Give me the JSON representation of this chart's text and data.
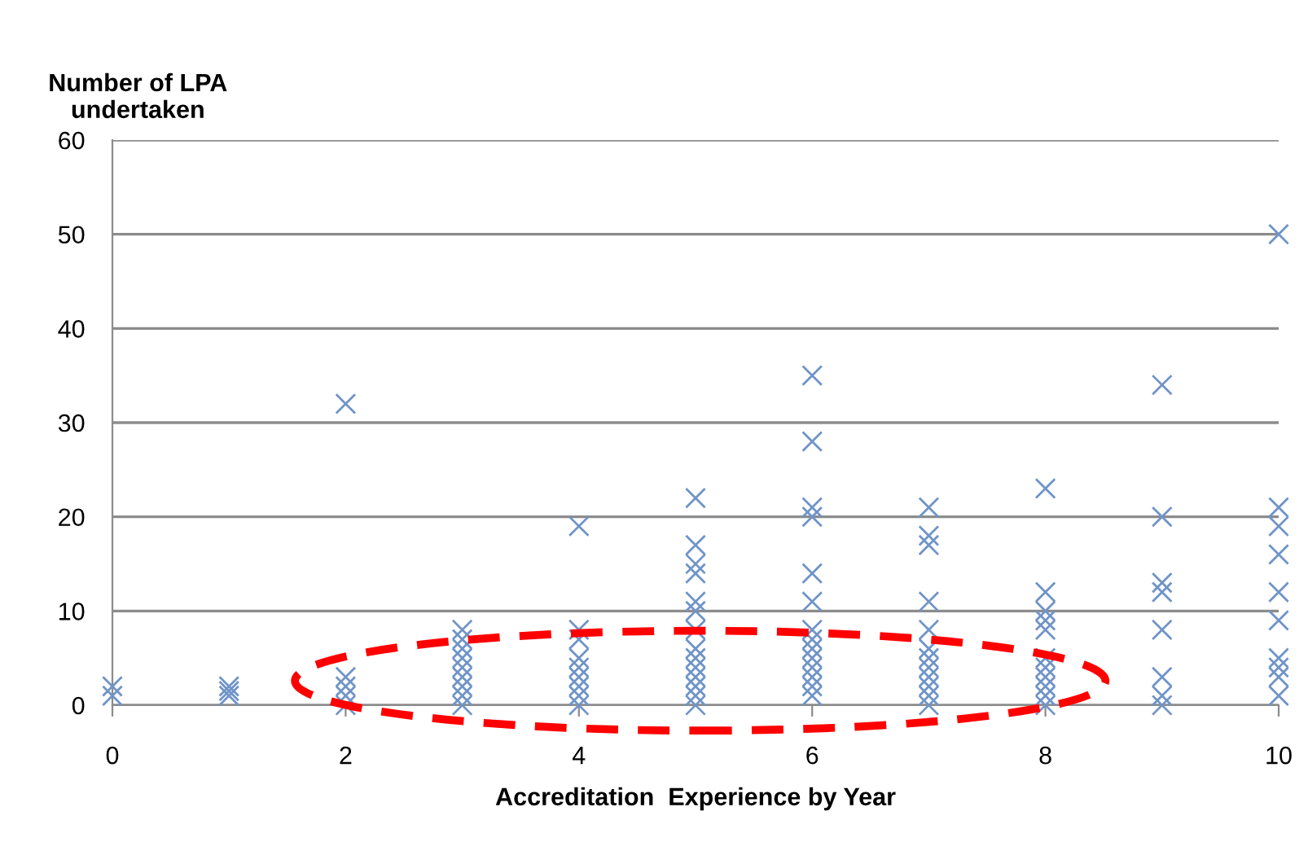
{
  "chart_data": {
    "type": "scatter",
    "xlabel": "Accreditation  Experience by Year",
    "ylabel": "Number of LPA\nundertaken",
    "series": [
      {
        "color": "#6f94c8",
        "x": [
          0,
          0,
          1,
          1,
          1,
          2,
          2,
          2,
          2,
          2,
          3,
          3,
          3,
          3,
          3,
          3,
          3,
          3,
          3,
          4,
          4,
          4,
          4,
          4,
          4,
          4,
          4,
          4,
          5,
          5,
          5,
          5,
          5,
          5,
          5,
          5,
          5,
          5,
          5,
          5,
          5,
          5,
          6,
          6,
          6,
          6,
          6,
          6,
          6,
          6,
          6,
          6,
          6,
          6,
          6,
          6,
          7,
          7,
          7,
          7,
          7,
          7,
          7,
          7,
          7,
          7,
          7,
          7,
          8,
          8,
          8,
          8,
          8,
          8,
          8,
          8,
          8,
          8,
          8,
          9,
          9,
          9,
          9,
          9,
          9,
          9,
          9,
          10,
          10,
          10,
          10,
          10,
          10,
          10,
          10,
          10,
          10
        ],
        "values": [
          1,
          2,
          1,
          2,
          1.5,
          32,
          0,
          1,
          2,
          3,
          0,
          1,
          2,
          3,
          4,
          5,
          6,
          7,
          8,
          19,
          0,
          1,
          2,
          3,
          4,
          5,
          7,
          8,
          22,
          17,
          15,
          14,
          11,
          10,
          8,
          6,
          5,
          4,
          3,
          2,
          1,
          0,
          35,
          28,
          21,
          20,
          14,
          11,
          8,
          7,
          6,
          5,
          4,
          3,
          2,
          1,
          21,
          18,
          17,
          11,
          8,
          6,
          5,
          4,
          3,
          2,
          1,
          0,
          23,
          12,
          10,
          9,
          8,
          5,
          4,
          3,
          2,
          1,
          0,
          34,
          20,
          13,
          12,
          8,
          3,
          1,
          0,
          50,
          21,
          19,
          16,
          12,
          9,
          5,
          4,
          3,
          1
        ]
      }
    ],
    "xlim": [
      0,
      10
    ],
    "xticks": [
      0,
      2,
      4,
      6,
      8,
      10
    ],
    "ylim": [
      0,
      60
    ],
    "yticks": [
      0,
      10,
      20,
      30,
      40,
      50,
      60
    ],
    "grid": "y",
    "marker": "cross"
  }
}
